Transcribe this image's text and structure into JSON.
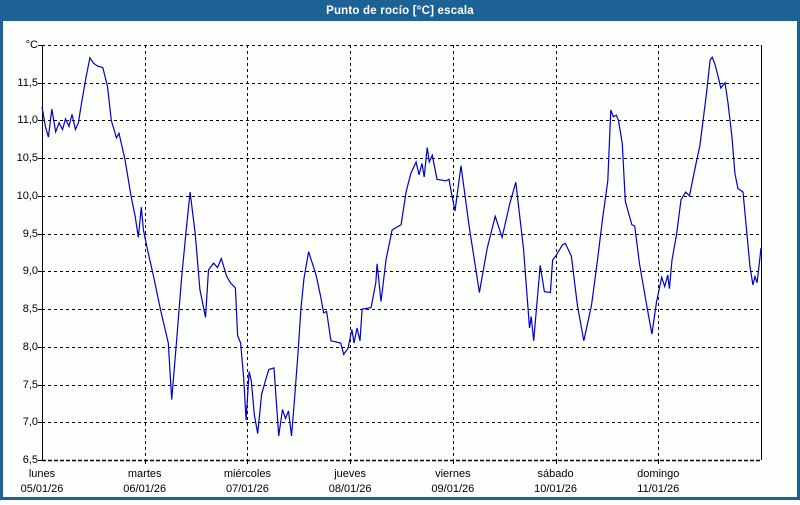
{
  "window": {
    "title": "Punto de rocío [°C] escala"
  },
  "colors": {
    "titlebar": "#1d6294",
    "window_border": "#1d6294",
    "plot_background": "#fdfffd",
    "grid": "#000000",
    "label": "#000000",
    "line": "#0000c8"
  },
  "chart_data": {
    "type": "line",
    "title": "Punto de rocío [°C] escala",
    "grid": "dashed",
    "legend": "none",
    "y_axis": {
      "unit": "°C",
      "min": 6.5,
      "max": 12.0,
      "step": 0.5,
      "tick_labels": [
        "11,5",
        "11,0",
        "10,5",
        "10,0",
        "9,5",
        "9,0",
        "8,5",
        "8,0",
        "7,5",
        "7,0",
        "6,5"
      ]
    },
    "x_axis": {
      "hours_total": 168,
      "days": [
        {
          "name": "lunes",
          "date": "05/01/26"
        },
        {
          "name": "martes",
          "date": "06/01/26"
        },
        {
          "name": "miércoles",
          "date": "07/01/26"
        },
        {
          "name": "jueves",
          "date": "08/01/26"
        },
        {
          "name": "viernes",
          "date": "09/01/26"
        },
        {
          "name": "sábado",
          "date": "10/01/26"
        },
        {
          "name": "domingo",
          "date": "11/01/26"
        }
      ]
    },
    "series": [
      {
        "name": "punto-de-rocio",
        "color": "#0000c8",
        "points": [
          [
            0,
            11.18
          ],
          [
            0.8,
            10.92
          ],
          [
            1.5,
            10.78
          ],
          [
            2.3,
            11.15
          ],
          [
            3.2,
            10.85
          ],
          [
            4,
            10.97
          ],
          [
            4.8,
            10.88
          ],
          [
            5.5,
            11.02
          ],
          [
            6.3,
            10.92
          ],
          [
            7,
            11.08
          ],
          [
            7.8,
            10.88
          ],
          [
            8.5,
            10.97
          ],
          [
            9.3,
            11.25
          ],
          [
            10.2,
            11.55
          ],
          [
            11.2,
            11.83
          ],
          [
            12,
            11.76
          ],
          [
            13,
            11.72
          ],
          [
            14.2,
            11.7
          ],
          [
            15.3,
            11.45
          ],
          [
            16.2,
            11.0
          ],
          [
            17.4,
            10.77
          ],
          [
            18,
            10.83
          ],
          [
            19.4,
            10.48
          ],
          [
            20.8,
            10.0
          ],
          [
            21.8,
            9.72
          ],
          [
            22.5,
            9.45
          ],
          [
            23.2,
            9.85
          ],
          [
            23.7,
            9.55
          ],
          [
            24.8,
            9.25
          ],
          [
            26,
            8.95
          ],
          [
            27.7,
            8.49
          ],
          [
            29.5,
            8.05
          ],
          [
            30.3,
            7.3
          ],
          [
            31.4,
            8.05
          ],
          [
            32.6,
            8.9
          ],
          [
            33.7,
            9.55
          ],
          [
            34.6,
            10.05
          ],
          [
            35.8,
            9.5
          ],
          [
            36.9,
            8.76
          ],
          [
            38.2,
            8.39
          ],
          [
            38.9,
            9.02
          ],
          [
            40.1,
            9.11
          ],
          [
            41,
            9.05
          ],
          [
            41.9,
            9.17
          ],
          [
            43.1,
            8.94
          ],
          [
            44,
            8.85
          ],
          [
            45.2,
            8.78
          ],
          [
            45.7,
            8.15
          ],
          [
            46.4,
            8.05
          ],
          [
            47.1,
            7.6
          ],
          [
            47.7,
            7.03
          ],
          [
            48.4,
            7.67
          ],
          [
            48.9,
            7.55
          ],
          [
            49.6,
            7.1
          ],
          [
            50.4,
            6.85
          ],
          [
            51.3,
            7.37
          ],
          [
            52.2,
            7.55
          ],
          [
            53,
            7.7
          ],
          [
            54.2,
            7.72
          ],
          [
            55.3,
            6.82
          ],
          [
            56.2,
            7.17
          ],
          [
            56.9,
            7.05
          ],
          [
            57.6,
            7.15
          ],
          [
            58.3,
            6.82
          ],
          [
            59,
            7.3
          ],
          [
            59.8,
            7.9
          ],
          [
            60.5,
            8.5
          ],
          [
            61.2,
            8.9
          ],
          [
            62.3,
            9.26
          ],
          [
            64,
            8.96
          ],
          [
            65.1,
            8.67
          ],
          [
            65.8,
            8.45
          ],
          [
            66.5,
            8.47
          ],
          [
            67.5,
            8.08
          ],
          [
            69.8,
            8.05
          ],
          [
            70.5,
            7.9
          ],
          [
            71.5,
            7.98
          ],
          [
            72.4,
            8.23
          ],
          [
            72.9,
            8.05
          ],
          [
            73.6,
            8.25
          ],
          [
            74.3,
            8.08
          ],
          [
            74.8,
            8.5
          ],
          [
            76.9,
            8.52
          ],
          [
            78,
            8.85
          ],
          [
            78.3,
            9.1
          ],
          [
            79.2,
            8.6
          ],
          [
            80.4,
            9.16
          ],
          [
            81.8,
            9.55
          ],
          [
            83.9,
            9.62
          ],
          [
            85.1,
            10.06
          ],
          [
            86.2,
            10.3
          ],
          [
            87.4,
            10.45
          ],
          [
            88.1,
            10.28
          ],
          [
            88.8,
            10.43
          ],
          [
            89.3,
            10.25
          ],
          [
            90,
            10.64
          ],
          [
            90.5,
            10.45
          ],
          [
            91.2,
            10.54
          ],
          [
            92.3,
            10.22
          ],
          [
            94.4,
            10.2
          ],
          [
            95.1,
            10.22
          ],
          [
            95.8,
            10.0
          ],
          [
            96.5,
            9.8
          ],
          [
            97.9,
            10.4
          ],
          [
            99.8,
            9.6
          ],
          [
            102.2,
            8.72
          ],
          [
            104,
            9.3
          ],
          [
            105.9,
            9.73
          ],
          [
            107.5,
            9.45
          ],
          [
            109.3,
            9.9
          ],
          [
            110.7,
            10.18
          ],
          [
            112.5,
            9.3
          ],
          [
            113.9,
            8.25
          ],
          [
            114.3,
            8.4
          ],
          [
            114.9,
            8.08
          ],
          [
            116.4,
            9.08
          ],
          [
            117.4,
            8.73
          ],
          [
            118.8,
            8.72
          ],
          [
            119.3,
            9.15
          ],
          [
            120,
            9.2
          ],
          [
            121.6,
            9.35
          ],
          [
            122.3,
            9.37
          ],
          [
            123.7,
            9.2
          ],
          [
            125.1,
            8.55
          ],
          [
            126.6,
            8.08
          ],
          [
            128.4,
            8.55
          ],
          [
            129.8,
            9.15
          ],
          [
            131,
            9.7
          ],
          [
            132.2,
            10.2
          ],
          [
            132.9,
            11.14
          ],
          [
            133.5,
            11.05
          ],
          [
            134.2,
            11.07
          ],
          [
            134.7,
            11.0
          ],
          [
            135.6,
            10.69
          ],
          [
            136.3,
            9.93
          ],
          [
            137.8,
            9.62
          ],
          [
            138.5,
            9.6
          ],
          [
            139.6,
            9.1
          ],
          [
            141.3,
            8.55
          ],
          [
            142.5,
            8.17
          ],
          [
            143.6,
            8.6
          ],
          [
            144.8,
            8.92
          ],
          [
            145.5,
            8.8
          ],
          [
            146.2,
            8.95
          ],
          [
            146.6,
            8.77
          ],
          [
            147.2,
            9.15
          ],
          [
            148.3,
            9.5
          ],
          [
            149.3,
            9.95
          ],
          [
            150.4,
            10.05
          ],
          [
            151.3,
            10.0
          ],
          [
            152,
            10.2
          ],
          [
            153,
            10.48
          ],
          [
            153.7,
            10.66
          ],
          [
            154.4,
            10.97
          ],
          [
            155.3,
            11.37
          ],
          [
            156.1,
            11.8
          ],
          [
            156.6,
            11.84
          ],
          [
            157.2,
            11.75
          ],
          [
            157.9,
            11.6
          ],
          [
            158.6,
            11.43
          ],
          [
            159.6,
            11.5
          ],
          [
            160.3,
            11.23
          ],
          [
            161.2,
            10.79
          ],
          [
            161.9,
            10.3
          ],
          [
            162.6,
            10.1
          ],
          [
            163.8,
            10.05
          ],
          [
            164.7,
            9.5
          ],
          [
            165.4,
            9.07
          ],
          [
            166.1,
            8.82
          ],
          [
            166.6,
            8.93
          ],
          [
            167.1,
            8.85
          ],
          [
            167.8,
            9.2
          ],
          [
            168,
            9.31
          ]
        ]
      }
    ]
  }
}
